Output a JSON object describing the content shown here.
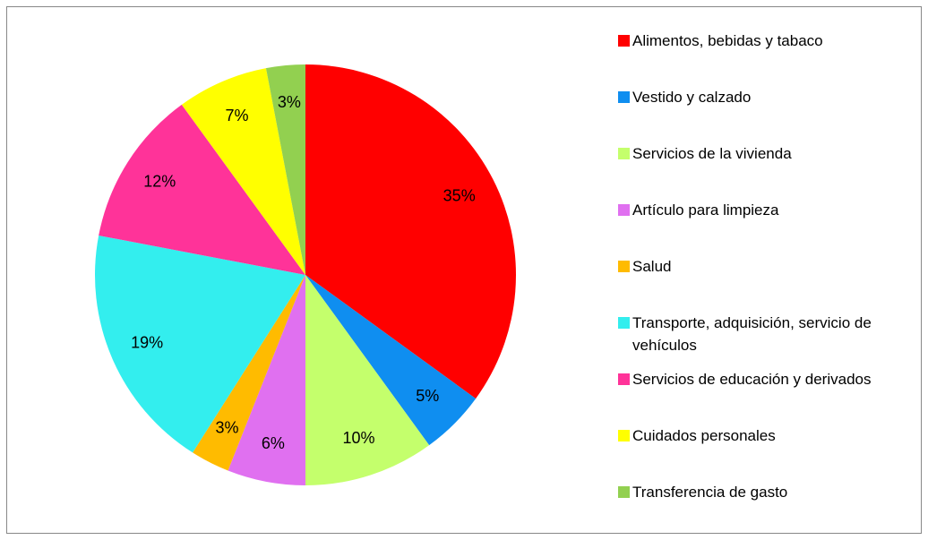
{
  "chart_data": {
    "type": "pie",
    "categories": [
      "Alimentos, bebidas y tabaco",
      "Vestido y calzado",
      "Servicios de la vivienda",
      "Artículo para limpieza",
      "Salud",
      "Transporte, adquisición, servicio de vehículos",
      "Servicios de educación y derivados",
      "Cuidados personales",
      "Transferencia de gasto"
    ],
    "values": [
      35,
      5,
      10,
      6,
      3,
      19,
      12,
      7,
      3
    ],
    "value_labels": [
      "35%",
      "5%",
      "10%",
      "6%",
      "3%",
      "19%",
      "12%",
      "7%",
      "3%"
    ],
    "colors": [
      "#ff0000",
      "#0f8ef0",
      "#c4ff6c",
      "#e070f0",
      "#ffbb00",
      "#33eeee",
      "#ff3399",
      "#ffff00",
      "#92d050"
    ],
    "legend": "right"
  }
}
